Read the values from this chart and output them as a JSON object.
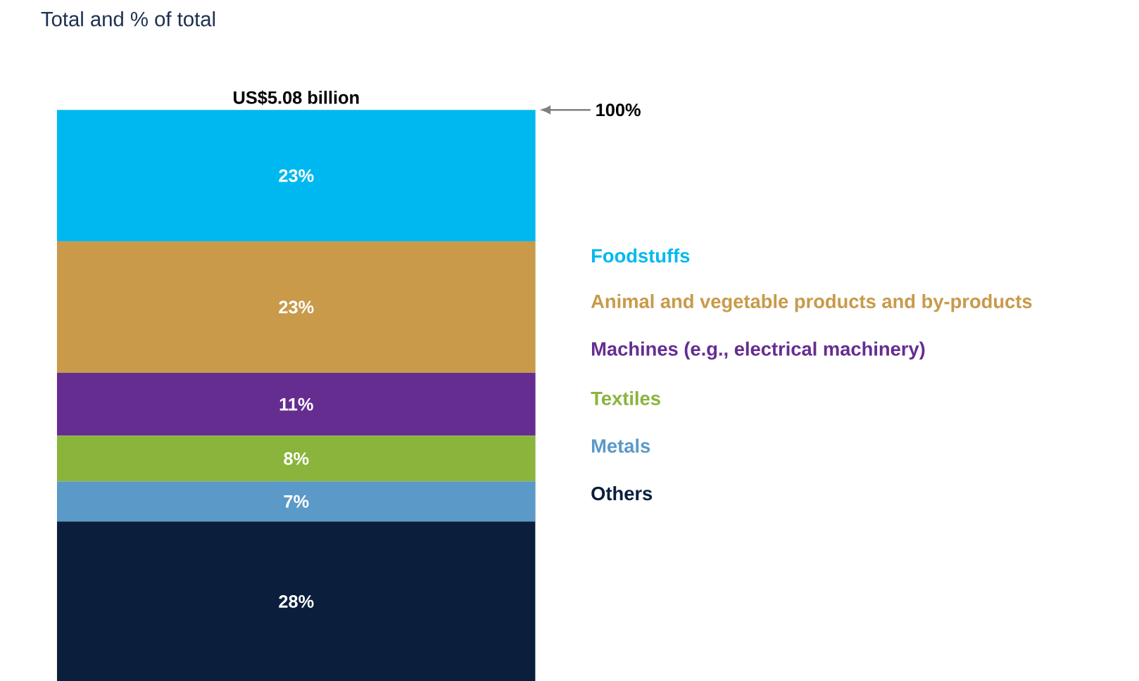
{
  "chart_data": {
    "type": "bar",
    "title": "Total and % of total",
    "stacked": true,
    "categories": [
      null
    ],
    "legend": "right",
    "series": [
      {
        "name": "Others",
        "color": "#0b1f3d",
        "values": [
          28
        ],
        "value_labels": [
          "28%"
        ]
      },
      {
        "name": "Metals",
        "color": "#5b99c8",
        "values": [
          7
        ],
        "value_labels": [
          "7%"
        ]
      },
      {
        "name": "Textiles",
        "color": "#8ab43c",
        "values": [
          8
        ],
        "value_labels": [
          "8%"
        ]
      },
      {
        "name": "Machines (e.g., electrical machinery)",
        "color": "#662d91",
        "values": [
          11
        ],
        "value_labels": [
          "11%"
        ]
      },
      {
        "name": "Animal and vegetable products and by-products",
        "color": "#c89a4a",
        "values": [
          23
        ],
        "value_labels": [
          "23%"
        ]
      },
      {
        "name": "Foodstuffs",
        "color": "#00b8f0",
        "values": [
          23
        ],
        "value_labels": [
          "23%"
        ]
      }
    ],
    "totals": [
      "US$5.08 billion"
    ],
    "annotations": [
      "100%"
    ]
  }
}
